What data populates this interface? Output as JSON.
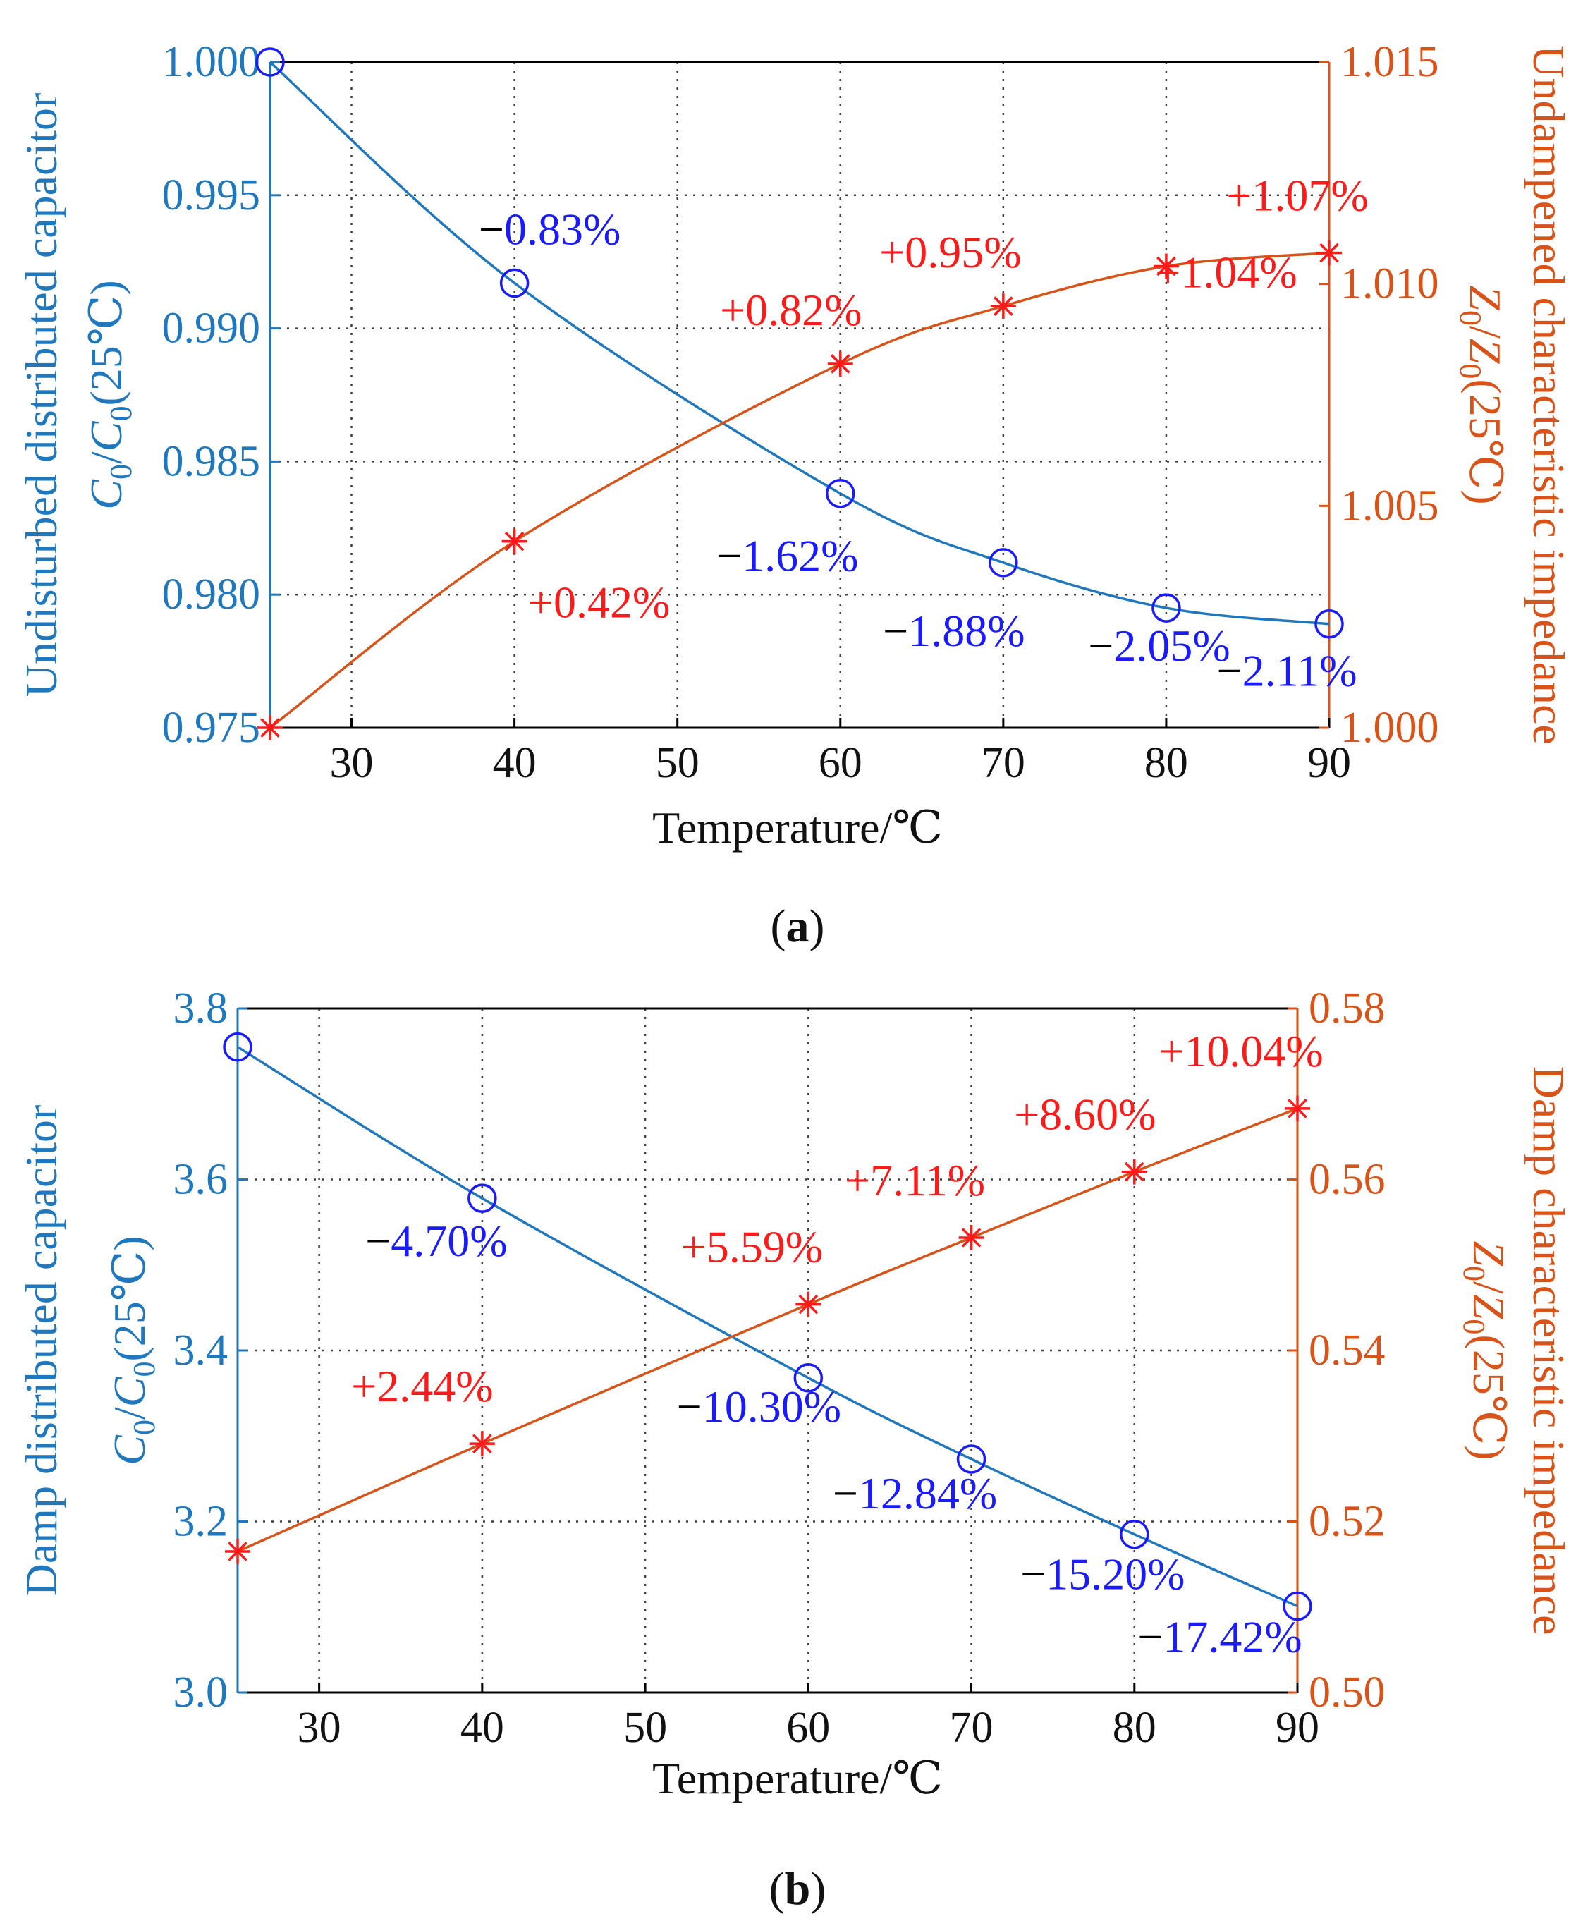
{
  "colors": {
    "left_axis": "#1f78bd",
    "right_axis": "#d95319",
    "circle_marker": "#1a1aff",
    "star_marker": "#ff1a1a",
    "label_sign": "#000000",
    "grid": "#404040"
  },
  "chart_data": [
    {
      "type": "line",
      "caption": "(a)",
      "caption_letter": "a",
      "xlabel": "Temperature/℃",
      "x": [
        25,
        40,
        60,
        70,
        80,
        90
      ],
      "xlim": [
        25,
        90
      ],
      "xticks": [
        "30",
        "40",
        "50",
        "60",
        "70",
        "80",
        "90"
      ],
      "left_axis": {
        "title": "Undisturbed distributed capacitor",
        "subtitle_parts": [
          "C",
          "0",
          "/",
          "C",
          "0",
          "(25℃)"
        ],
        "ylim": [
          0.975,
          1.0
        ],
        "ticks": [
          "0.975",
          "0.980",
          "0.985",
          "0.990",
          "0.995",
          "1.000"
        ]
      },
      "right_axis": {
        "title": "Undampened characteristic impedance",
        "subtitle_parts": [
          "Z",
          "0",
          "/",
          "Z",
          "0",
          "(25℃)"
        ],
        "ylim": [
          1.0,
          1.015
        ],
        "ticks": [
          "1.000",
          "1.005",
          "1.010",
          "1.015"
        ]
      },
      "series": [
        {
          "name": "C0/C0(25℃)",
          "axis": "left",
          "marker": "circle",
          "values": [
            1.0,
            0.9917,
            0.9838,
            0.9812,
            0.9795,
            0.9789
          ],
          "labels": [
            "",
            "−0.83%",
            "−1.62%",
            "−1.88%",
            "−2.05%",
            "−2.11%"
          ]
        },
        {
          "name": "Z0/Z0(25℃)",
          "axis": "right",
          "marker": "star",
          "values": [
            1.0,
            1.0042,
            1.0082,
            1.0095,
            1.0104,
            1.0107
          ],
          "labels": [
            "",
            "+0.42%",
            "+0.82%",
            "+0.95%",
            "+1.04%",
            "+1.07%"
          ]
        }
      ]
    },
    {
      "type": "line",
      "caption": "(b)",
      "caption_letter": "b",
      "xlabel": "Temperature/℃",
      "x": [
        25,
        40,
        60,
        70,
        80,
        90
      ],
      "xlim": [
        25,
        90
      ],
      "xticks": [
        "30",
        "40",
        "50",
        "60",
        "70",
        "80",
        "90"
      ],
      "left_axis": {
        "title": "Damp distributed capacitor",
        "subtitle_parts": [
          "C",
          "0",
          "/",
          "C",
          "0",
          "(25℃)"
        ],
        "ylim": [
          3.0,
          3.8
        ],
        "ticks": [
          "3.0",
          "3.2",
          "3.4",
          "3.6",
          "3.8"
        ]
      },
      "right_axis": {
        "title": "Damp characteristic impedance",
        "subtitle_parts": [
          "Z",
          "0",
          "/",
          "Z",
          "0",
          "(25℃)"
        ],
        "ylim": [
          0.5,
          0.58
        ],
        "ticks": [
          "0.50",
          "0.52",
          "0.54",
          "0.56",
          "0.58"
        ]
      },
      "series": [
        {
          "name": "C0/C0(25℃)",
          "axis": "left",
          "marker": "circle",
          "values": [
            3.755,
            3.578,
            3.368,
            3.273,
            3.185,
            3.101
          ],
          "labels": [
            "",
            "−4.70%",
            "−10.30%",
            "−12.84%",
            "−15.20%",
            "−17.42%"
          ]
        },
        {
          "name": "Z0/Z0(25℃)",
          "axis": "right",
          "marker": "star",
          "values": [
            0.5165,
            0.5291,
            0.5454,
            0.5532,
            0.5609,
            0.5683
          ],
          "labels": [
            "",
            "+2.44%",
            "+5.59%",
            "+7.11%",
            "+8.60%",
            "+10.04%"
          ]
        }
      ]
    }
  ]
}
